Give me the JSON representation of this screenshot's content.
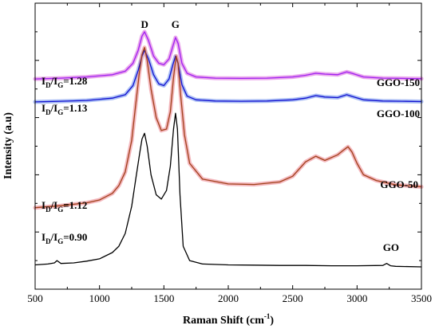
{
  "chart_data": {
    "type": "line",
    "title": "",
    "xlabel": "Raman Shift (cm",
    "xlabel_sup": "-1",
    "xlabel_tail": ")",
    "ylabel": "Intensity (a.u)",
    "xlim": [
      500,
      3500
    ],
    "ylim": [
      0,
      1
    ],
    "x_ticks": [
      "500",
      "1000",
      "1500",
      "2000",
      "2500",
      "3000",
      "3500"
    ],
    "y_ticks_labeled": false,
    "grid": false,
    "peak_labels": [
      {
        "text": "D",
        "x": 1350
      },
      {
        "text": "G",
        "x": 1590
      }
    ],
    "ratio_labels": [
      {
        "series": "GGO-150",
        "main": "I",
        "sub1": "D",
        "mid": "/I",
        "sub2": "G",
        "value": "=1.28"
      },
      {
        "series": "GGO-100",
        "main": "I",
        "sub1": "D",
        "mid": "/I",
        "sub2": "G",
        "value": "=1.13"
      },
      {
        "series": "GGO-50",
        "main": "I",
        "sub1": "D",
        "mid": "/I",
        "sub2": "G",
        "value": "=1.12"
      },
      {
        "series": "GO",
        "main": "I",
        "sub1": "D",
        "mid": "/I",
        "sub2": "G",
        "value": "=0.90"
      }
    ],
    "series": [
      {
        "name": "GGO-150",
        "color": "#a020f0",
        "halo": "#e38be6",
        "x": [
          500,
          700,
          900,
          1100,
          1200,
          1260,
          1300,
          1330,
          1350,
          1380,
          1420,
          1460,
          1500,
          1540,
          1570,
          1590,
          1610,
          1640,
          1680,
          1750,
          1900,
          2100,
          2300,
          2500,
          2600,
          2680,
          2750,
          2850,
          2920,
          2960,
          3050,
          3200,
          3350,
          3500
        ],
        "y": [
          0.735,
          0.738,
          0.742,
          0.75,
          0.762,
          0.79,
          0.835,
          0.885,
          0.9,
          0.87,
          0.815,
          0.79,
          0.785,
          0.805,
          0.85,
          0.88,
          0.86,
          0.79,
          0.755,
          0.742,
          0.738,
          0.737,
          0.738,
          0.742,
          0.748,
          0.755,
          0.752,
          0.75,
          0.76,
          0.755,
          0.742,
          0.738,
          0.737,
          0.736
        ]
      },
      {
        "name": "GGO-100",
        "color": "#1010d0",
        "halo": "#8fa8f0",
        "x": [
          500,
          700,
          900,
          1100,
          1200,
          1260,
          1300,
          1330,
          1350,
          1380,
          1420,
          1460,
          1500,
          1540,
          1570,
          1590,
          1610,
          1640,
          1680,
          1750,
          1900,
          2100,
          2300,
          2500,
          2600,
          2680,
          2750,
          2850,
          2920,
          2960,
          3050,
          3200,
          3350,
          3500
        ],
        "y": [
          0.655,
          0.657,
          0.66,
          0.668,
          0.68,
          0.712,
          0.765,
          0.815,
          0.835,
          0.805,
          0.75,
          0.718,
          0.712,
          0.735,
          0.785,
          0.815,
          0.79,
          0.715,
          0.675,
          0.662,
          0.658,
          0.657,
          0.658,
          0.662,
          0.668,
          0.677,
          0.672,
          0.67,
          0.68,
          0.674,
          0.662,
          0.658,
          0.657,
          0.656
        ]
      },
      {
        "name": "GGO-50",
        "color": "#a0401a",
        "halo": "#f0a0a8",
        "x": [
          500,
          700,
          900,
          1000,
          1100,
          1150,
          1200,
          1250,
          1280,
          1310,
          1330,
          1350,
          1370,
          1400,
          1440,
          1480,
          1520,
          1550,
          1575,
          1595,
          1610,
          1630,
          1660,
          1700,
          1800,
          2000,
          2200,
          2400,
          2500,
          2600,
          2680,
          2750,
          2850,
          2900,
          2930,
          2960,
          3000,
          3050,
          3150,
          3300,
          3500
        ],
        "y": [
          0.285,
          0.292,
          0.302,
          0.312,
          0.335,
          0.362,
          0.41,
          0.52,
          0.64,
          0.76,
          0.82,
          0.845,
          0.8,
          0.7,
          0.6,
          0.555,
          0.56,
          0.62,
          0.74,
          0.815,
          0.79,
          0.68,
          0.54,
          0.44,
          0.385,
          0.368,
          0.366,
          0.375,
          0.395,
          0.445,
          0.465,
          0.45,
          0.47,
          0.488,
          0.498,
          0.48,
          0.44,
          0.4,
          0.38,
          0.365,
          0.358
        ]
      },
      {
        "name": "GO",
        "color": "#000000",
        "halo": "",
        "x": [
          500,
          600,
          650,
          670,
          700,
          800,
          900,
          1000,
          1100,
          1150,
          1200,
          1250,
          1280,
          1310,
          1330,
          1350,
          1370,
          1400,
          1440,
          1480,
          1520,
          1550,
          1575,
          1590,
          1605,
          1625,
          1650,
          1700,
          1800,
          2000,
          2200,
          2400,
          2600,
          2800,
          3000,
          3200,
          3230,
          3260,
          3300,
          3500
        ],
        "y": [
          0.085,
          0.088,
          0.092,
          0.1,
          0.09,
          0.092,
          0.098,
          0.106,
          0.128,
          0.15,
          0.195,
          0.29,
          0.38,
          0.47,
          0.525,
          0.545,
          0.5,
          0.4,
          0.33,
          0.315,
          0.345,
          0.43,
          0.56,
          0.615,
          0.56,
          0.33,
          0.15,
          0.1,
          0.088,
          0.085,
          0.084,
          0.083,
          0.083,
          0.082,
          0.082,
          0.083,
          0.09,
          0.082,
          0.08,
          0.078
        ]
      }
    ]
  }
}
